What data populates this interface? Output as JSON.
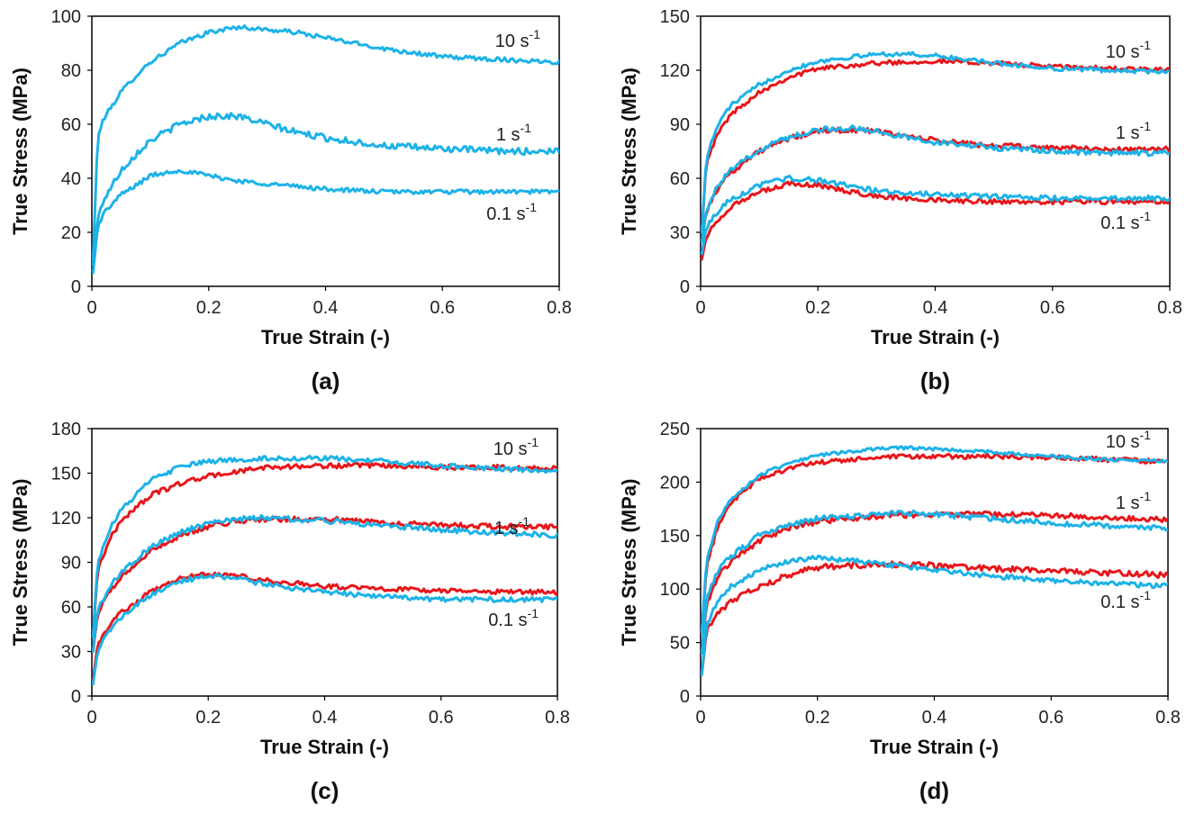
{
  "colors": {
    "blue": "#1cb2e8",
    "red": "#e8161b"
  },
  "chart_data": [
    {
      "type": "line",
      "panel_label": "(a)",
      "xlabel": "True Strain (-)",
      "ylabel": "True Stress (MPa)",
      "xlim": [
        0,
        0.8
      ],
      "ylim": [
        0,
        100
      ],
      "xticks": [
        "0",
        "0.2",
        "0.4",
        "0.6",
        "0.8"
      ],
      "yticks": [
        "0",
        "20",
        "40",
        "60",
        "80",
        "100"
      ],
      "grid": false,
      "rate_labels": [
        {
          "base": "10 s",
          "exp": "-1"
        },
        {
          "base": "1 s",
          "exp": "-1"
        },
        {
          "base": "0.1 s",
          "exp": "-1"
        }
      ],
      "series": [
        {
          "color": "blue",
          "noise": 0.8,
          "x": [
            0.002,
            0.01,
            0.02,
            0.05,
            0.08,
            0.1,
            0.15,
            0.2,
            0.25,
            0.3,
            0.35,
            0.4,
            0.5,
            0.6,
            0.7,
            0.8
          ],
          "y": [
            10,
            55,
            62,
            72,
            79,
            83,
            90,
            94,
            96,
            95,
            94,
            92,
            88,
            85,
            84,
            83
          ]
        },
        {
          "color": "blue",
          "noise": 1.2,
          "x": [
            0.002,
            0.01,
            0.02,
            0.05,
            0.08,
            0.1,
            0.15,
            0.2,
            0.25,
            0.3,
            0.35,
            0.4,
            0.5,
            0.6,
            0.7,
            0.8
          ],
          "y": [
            8,
            25,
            32,
            43,
            50,
            54,
            60,
            63,
            63,
            60,
            57,
            55,
            52,
            51,
            50,
            50
          ]
        },
        {
          "color": "blue",
          "noise": 0.8,
          "x": [
            0.002,
            0.01,
            0.02,
            0.05,
            0.08,
            0.1,
            0.15,
            0.2,
            0.25,
            0.3,
            0.4,
            0.5,
            0.6,
            0.7,
            0.8
          ],
          "y": [
            5,
            22,
            27,
            34,
            38,
            41,
            43,
            41,
            39,
            38,
            36,
            35,
            35,
            35,
            35
          ]
        }
      ]
    },
    {
      "type": "line",
      "panel_label": "(b)",
      "xlabel": "True Strain (-)",
      "ylabel": "True Stress (MPa)",
      "xlim": [
        0,
        0.8
      ],
      "ylim": [
        0,
        150
      ],
      "xticks": [
        "0",
        "0.2",
        "0.4",
        "0.6",
        "0.8"
      ],
      "yticks": [
        "0",
        "30",
        "60",
        "90",
        "120",
        "150"
      ],
      "grid": false,
      "rate_labels": [
        {
          "base": "10 s",
          "exp": "-1"
        },
        {
          "base": "1 s",
          "exp": "-1"
        },
        {
          "base": "0.1 s",
          "exp": "-1"
        }
      ],
      "series": [
        {
          "color": "red",
          "noise": 0.8,
          "x": [
            0.002,
            0.01,
            0.03,
            0.05,
            0.1,
            0.15,
            0.2,
            0.3,
            0.4,
            0.5,
            0.6,
            0.7,
            0.8
          ],
          "y": [
            30,
            70,
            85,
            95,
            108,
            116,
            121,
            124,
            125,
            124,
            122,
            121,
            120
          ]
        },
        {
          "color": "blue",
          "noise": 0.8,
          "x": [
            0.002,
            0.01,
            0.03,
            0.05,
            0.1,
            0.15,
            0.2,
            0.3,
            0.35,
            0.4,
            0.5,
            0.6,
            0.7,
            0.8
          ],
          "y": [
            30,
            72,
            90,
            100,
            112,
            120,
            125,
            129,
            129,
            128,
            124,
            121,
            120,
            119
          ]
        },
        {
          "color": "red",
          "noise": 1.0,
          "x": [
            0.002,
            0.01,
            0.03,
            0.05,
            0.1,
            0.15,
            0.2,
            0.25,
            0.3,
            0.4,
            0.5,
            0.6,
            0.7,
            0.8
          ],
          "y": [
            25,
            42,
            55,
            63,
            75,
            82,
            86,
            87,
            86,
            81,
            78,
            77,
            76,
            76
          ]
        },
        {
          "color": "blue",
          "noise": 1.0,
          "x": [
            0.002,
            0.01,
            0.03,
            0.05,
            0.1,
            0.15,
            0.2,
            0.25,
            0.3,
            0.4,
            0.5,
            0.6,
            0.7,
            0.8
          ],
          "y": [
            25,
            43,
            56,
            64,
            76,
            83,
            87,
            88,
            86,
            80,
            77,
            75,
            74,
            74
          ]
        },
        {
          "color": "red",
          "noise": 0.9,
          "x": [
            0.002,
            0.01,
            0.03,
            0.05,
            0.1,
            0.15,
            0.2,
            0.25,
            0.3,
            0.4,
            0.5,
            0.6,
            0.7,
            0.8
          ],
          "y": [
            15,
            28,
            37,
            44,
            52,
            57,
            56,
            53,
            50,
            48,
            47,
            47,
            47,
            47
          ]
        },
        {
          "color": "blue",
          "noise": 0.9,
          "x": [
            0.002,
            0.01,
            0.03,
            0.05,
            0.1,
            0.15,
            0.2,
            0.25,
            0.3,
            0.4,
            0.5,
            0.6,
            0.7,
            0.8
          ],
          "y": [
            18,
            33,
            42,
            48,
            56,
            60,
            59,
            56,
            53,
            51,
            50,
            49,
            49,
            49
          ]
        }
      ]
    },
    {
      "type": "line",
      "panel_label": "(c)",
      "xlabel": "True Strain (-)",
      "ylabel": "True Stress (MPa)",
      "xlim": [
        0,
        0.8
      ],
      "ylim": [
        0,
        180
      ],
      "xticks": [
        "0",
        "0.2",
        "0.4",
        "0.6",
        "0.8"
      ],
      "yticks": [
        "0",
        "30",
        "60",
        "90",
        "120",
        "150",
        "180"
      ],
      "grid": false,
      "rate_labels": [
        {
          "base": "10 s",
          "exp": "-1"
        },
        {
          "base": "1 s",
          "exp": "-1"
        },
        {
          "base": "0.1 s",
          "exp": "-1"
        }
      ],
      "series": [
        {
          "color": "red",
          "noise": 0.9,
          "x": [
            0.002,
            0.01,
            0.03,
            0.05,
            0.1,
            0.15,
            0.2,
            0.3,
            0.4,
            0.5,
            0.6,
            0.7,
            0.8
          ],
          "y": [
            40,
            85,
            105,
            118,
            135,
            143,
            148,
            154,
            155,
            155,
            154,
            154,
            153
          ]
        },
        {
          "color": "blue",
          "noise": 0.9,
          "x": [
            0.002,
            0.01,
            0.03,
            0.05,
            0.1,
            0.15,
            0.2,
            0.3,
            0.4,
            0.5,
            0.6,
            0.7,
            0.8
          ],
          "y": [
            40,
            90,
            112,
            125,
            145,
            154,
            158,
            160,
            160,
            158,
            155,
            153,
            151
          ]
        },
        {
          "color": "red",
          "noise": 1.0,
          "x": [
            0.002,
            0.01,
            0.03,
            0.05,
            0.1,
            0.15,
            0.2,
            0.25,
            0.3,
            0.4,
            0.5,
            0.6,
            0.7,
            0.8
          ],
          "y": [
            30,
            55,
            70,
            80,
            97,
            108,
            114,
            118,
            119,
            119,
            117,
            115,
            114,
            114
          ]
        },
        {
          "color": "blue",
          "noise": 1.0,
          "x": [
            0.002,
            0.01,
            0.03,
            0.05,
            0.1,
            0.15,
            0.2,
            0.25,
            0.3,
            0.4,
            0.5,
            0.6,
            0.7,
            0.8
          ],
          "y": [
            30,
            58,
            73,
            83,
            100,
            110,
            116,
            119,
            120,
            118,
            115,
            112,
            110,
            108
          ]
        },
        {
          "color": "red",
          "noise": 0.9,
          "x": [
            0.002,
            0.01,
            0.03,
            0.05,
            0.1,
            0.15,
            0.2,
            0.25,
            0.3,
            0.4,
            0.5,
            0.6,
            0.7,
            0.8
          ],
          "y": [
            10,
            35,
            48,
            56,
            70,
            79,
            82,
            81,
            78,
            74,
            72,
            71,
            70,
            70
          ]
        },
        {
          "color": "blue",
          "noise": 0.9,
          "x": [
            0.002,
            0.01,
            0.03,
            0.05,
            0.1,
            0.15,
            0.2,
            0.25,
            0.3,
            0.4,
            0.5,
            0.6,
            0.7,
            0.8
          ],
          "y": [
            8,
            30,
            44,
            53,
            68,
            77,
            81,
            79,
            75,
            70,
            67,
            65,
            65,
            65
          ]
        }
      ]
    },
    {
      "type": "line",
      "panel_label": "(d)",
      "xlabel": "True Strain (-)",
      "ylabel": "True Stress (MPa)",
      "xlim": [
        0,
        0.8
      ],
      "ylim": [
        0,
        250
      ],
      "xticks": [
        "0",
        "0.2",
        "0.4",
        "0.6",
        "0.8"
      ],
      "yticks": [
        "0",
        "50",
        "100",
        "150",
        "200",
        "250"
      ],
      "grid": false,
      "rate_labels": [
        {
          "base": "10 s",
          "exp": "-1"
        },
        {
          "base": "1 s",
          "exp": "-1"
        },
        {
          "base": "0.1 s",
          "exp": "-1"
        }
      ],
      "series": [
        {
          "color": "red",
          "noise": 0.9,
          "x": [
            0.002,
            0.01,
            0.03,
            0.05,
            0.1,
            0.15,
            0.2,
            0.3,
            0.4,
            0.5,
            0.6,
            0.7,
            0.8
          ],
          "y": [
            60,
            120,
            160,
            180,
            203,
            213,
            218,
            223,
            224,
            224,
            223,
            221,
            219
          ]
        },
        {
          "color": "blue",
          "noise": 0.6,
          "x": [
            0.002,
            0.01,
            0.03,
            0.05,
            0.1,
            0.15,
            0.2,
            0.3,
            0.35,
            0.4,
            0.5,
            0.6,
            0.7,
            0.8
          ],
          "y": [
            60,
            125,
            165,
            183,
            206,
            218,
            225,
            231,
            232,
            231,
            228,
            224,
            221,
            220
          ]
        },
        {
          "color": "red",
          "noise": 1.0,
          "x": [
            0.002,
            0.01,
            0.03,
            0.05,
            0.1,
            0.15,
            0.2,
            0.3,
            0.4,
            0.5,
            0.6,
            0.7,
            0.8
          ],
          "y": [
            40,
            85,
            112,
            125,
            145,
            157,
            163,
            168,
            170,
            170,
            169,
            167,
            165
          ]
        },
        {
          "color": "blue",
          "noise": 1.0,
          "x": [
            0.002,
            0.01,
            0.03,
            0.05,
            0.1,
            0.15,
            0.2,
            0.3,
            0.35,
            0.4,
            0.5,
            0.6,
            0.7,
            0.8
          ],
          "y": [
            40,
            90,
            118,
            130,
            150,
            160,
            166,
            170,
            171,
            170,
            166,
            162,
            159,
            157
          ]
        },
        {
          "color": "red",
          "noise": 1.1,
          "x": [
            0.002,
            0.01,
            0.03,
            0.05,
            0.1,
            0.15,
            0.2,
            0.25,
            0.3,
            0.4,
            0.5,
            0.6,
            0.7,
            0.8
          ],
          "y": [
            20,
            60,
            78,
            88,
            102,
            113,
            120,
            122,
            123,
            122,
            119,
            117,
            115,
            113
          ]
        },
        {
          "color": "blue",
          "noise": 0.9,
          "x": [
            0.002,
            0.01,
            0.03,
            0.05,
            0.1,
            0.15,
            0.2,
            0.25,
            0.3,
            0.4,
            0.5,
            0.6,
            0.7,
            0.8
          ],
          "y": [
            20,
            65,
            90,
            102,
            118,
            126,
            129,
            127,
            124,
            118,
            112,
            108,
            105,
            103
          ]
        }
      ]
    }
  ]
}
